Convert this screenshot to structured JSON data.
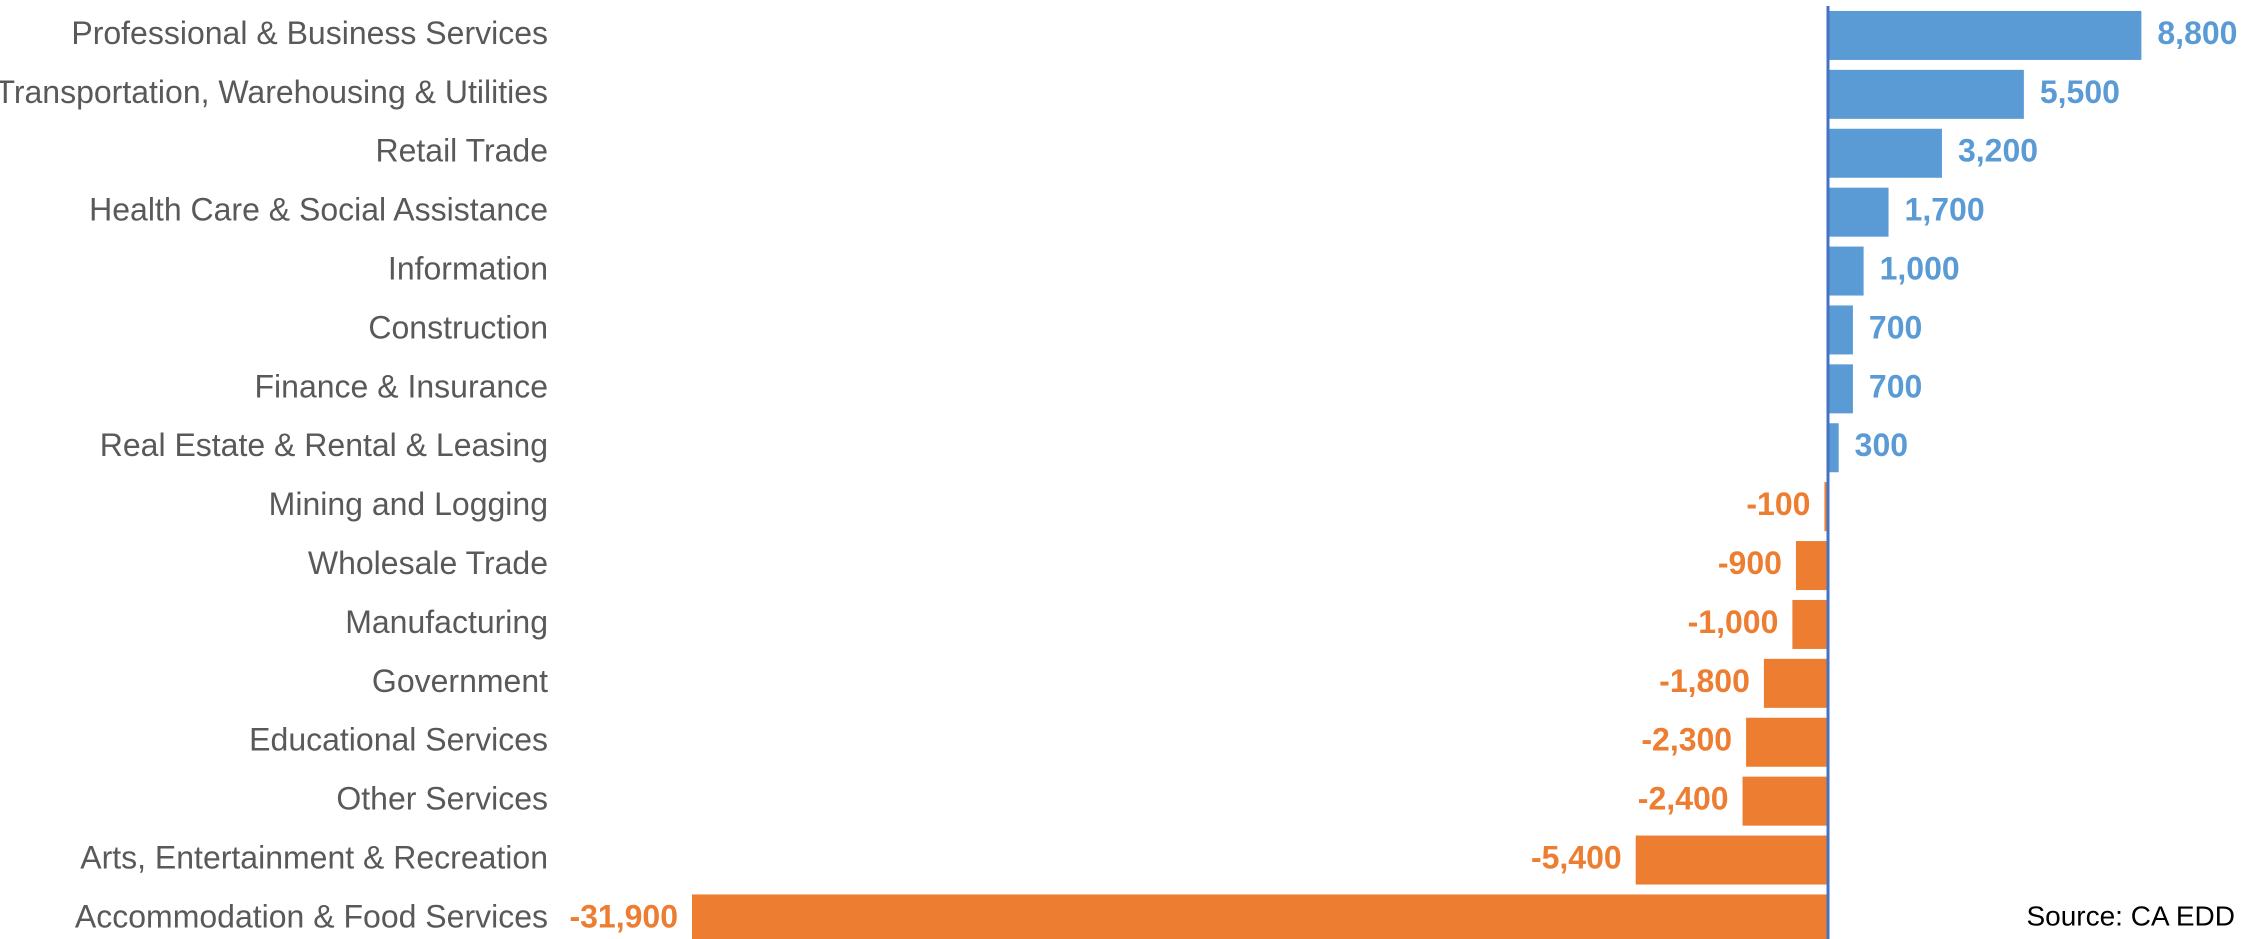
{
  "chart_data": {
    "type": "bar",
    "orientation": "horizontal",
    "categories": [
      "Professional & Business Services",
      "Transportation, Warehousing & Utilities",
      "Retail Trade",
      "Health Care & Social Assistance",
      "Information",
      "Construction",
      "Finance & Insurance",
      "Real Estate & Rental & Leasing",
      "Mining and Logging",
      "Wholesale Trade",
      "Manufacturing",
      "Government",
      "Educational Services",
      "Other Services",
      "Arts, Entertainment & Recreation",
      "Accommodation & Food Services"
    ],
    "values": [
      8800,
      5500,
      3200,
      1700,
      1000,
      700,
      700,
      300,
      -100,
      -900,
      -1000,
      -1800,
      -2300,
      -2400,
      -5400,
      -31900
    ],
    "value_labels": [
      "8,800",
      "5,500",
      "3,200",
      "1,700",
      "1,000",
      "700",
      "700",
      "300",
      "-100",
      "-900",
      "-1,000",
      "-1,800",
      "-2,300",
      "-2,400",
      "-5,400",
      "-31,900"
    ],
    "color": "#5b9bd5",
    "negative_color": "#ed7d31",
    "annotation": "Source: CA EDD"
  }
}
